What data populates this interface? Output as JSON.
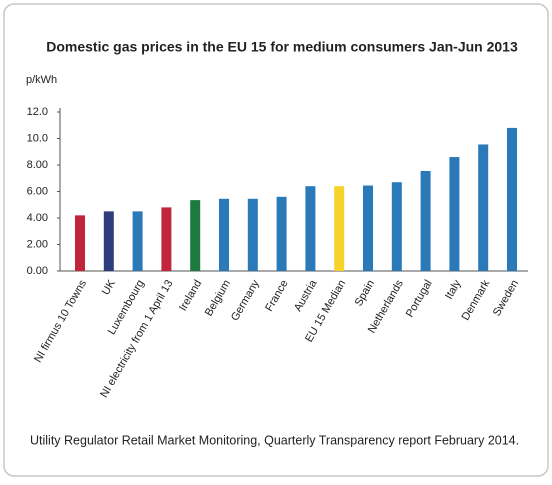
{
  "chart_data": {
    "type": "bar",
    "title": "Domestic gas prices in the EU 15 for medium consumers Jan-Jun 2013",
    "y_label": "p/kWh",
    "caption": "Utility Regulator Retail Market Monitoring, Quarterly Transparency report February 2014.",
    "categories": [
      "NI firmus 10 Towns",
      "UK",
      "Luxembourg",
      "NI electricity from 1 April 13",
      "Ireland",
      "Belgium",
      "Germany",
      "France",
      "Austria",
      "EU 15 Median",
      "Spain",
      "Netherlands",
      "Portugal",
      "Italy",
      "Denmark",
      "Sweden"
    ],
    "values": [
      4.2,
      4.5,
      4.5,
      4.8,
      5.35,
      5.45,
      5.45,
      5.6,
      6.4,
      6.4,
      6.45,
      6.7,
      7.55,
      8.6,
      9.55,
      10.8
    ],
    "colors": [
      "#c0253a",
      "#2e3d7c",
      "#2a7ab9",
      "#c0253a",
      "#1d7a3e",
      "#2a7ab9",
      "#2a7ab9",
      "#2a7ab9",
      "#2a7ab9",
      "#f7d22a",
      "#2a7ab9",
      "#2a7ab9",
      "#2a7ab9",
      "#2a7ab9",
      "#2a7ab9",
      "#2a7ab9"
    ],
    "ylim": [
      0,
      12
    ],
    "yticks": [
      {
        "value": 0,
        "label": "0.00"
      },
      {
        "value": 2,
        "label": "2.00"
      },
      {
        "value": 4,
        "label": "4.00"
      },
      {
        "value": 6,
        "label": "6.00"
      },
      {
        "value": 8,
        "label": "8.00"
      },
      {
        "value": 10,
        "label": "10.0"
      },
      {
        "value": 12,
        "label": "12.0"
      }
    ],
    "grid": false
  }
}
